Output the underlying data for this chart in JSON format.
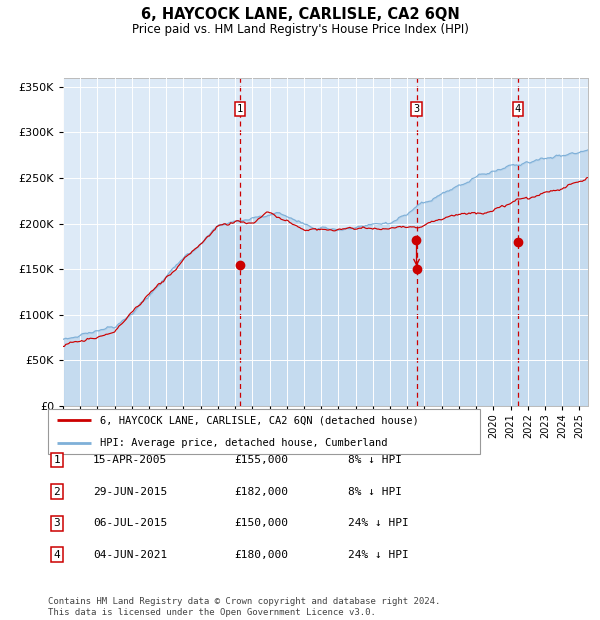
{
  "title": "6, HAYCOCK LANE, CARLISLE, CA2 6QN",
  "subtitle": "Price paid vs. HM Land Registry's House Price Index (HPI)",
  "hpi_label": "HPI: Average price, detached house, Cumberland",
  "price_label": "6, HAYCOCK LANE, CARLISLE, CA2 6QN (detached house)",
  "hpi_color": "#7fb0d8",
  "price_color": "#cc0000",
  "bg_color": "#ddeaf7",
  "sale_dates_num": [
    2005.29,
    2015.49,
    2015.54,
    2021.42
  ],
  "sale_prices": [
    155000,
    182000,
    150000,
    180000
  ],
  "sale_labels": [
    "1",
    "2",
    "3",
    "4"
  ],
  "vline_dates": [
    2005.29,
    2015.54,
    2021.42
  ],
  "vline_labels": [
    "1",
    "3",
    "4"
  ],
  "table_rows": [
    [
      "1",
      "15-APR-2005",
      "£155,000",
      "8% ↓ HPI"
    ],
    [
      "2",
      "29-JUN-2015",
      "£182,000",
      "8% ↓ HPI"
    ],
    [
      "3",
      "06-JUL-2015",
      "£150,000",
      "24% ↓ HPI"
    ],
    [
      "4",
      "04-JUN-2021",
      "£180,000",
      "24% ↓ HPI"
    ]
  ],
  "footnote": "Contains HM Land Registry data © Crown copyright and database right 2024.\nThis data is licensed under the Open Government Licence v3.0.",
  "ylim": [
    0,
    360000
  ],
  "xlim_start": 1995.0,
  "xlim_end": 2025.5,
  "yticks": [
    0,
    50000,
    100000,
    150000,
    200000,
    250000,
    300000,
    350000
  ]
}
